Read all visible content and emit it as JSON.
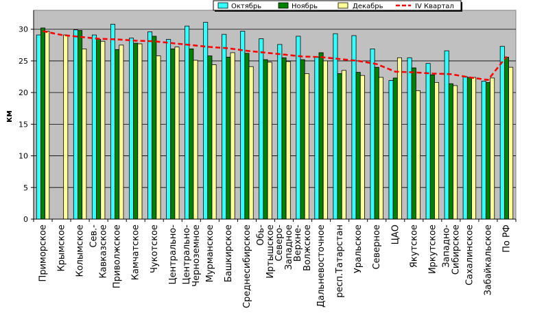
{
  "chart_data": {
    "type": "bar",
    "title": "",
    "xlabel": "",
    "ylabel": "км",
    "ylim": [
      0,
      33
    ],
    "yticks": [
      0,
      5,
      10,
      15,
      20,
      25,
      30
    ],
    "grid": true,
    "legend_position": "top-right",
    "categories": [
      "Приморское",
      "Крымское",
      "Колымское",
      "Сев.-Кавказское",
      "Приволжское",
      "Камчатское",
      "Чукотское",
      "Центрально-",
      "Центрально-Черноземное",
      "Мурманское",
      "Башкирское",
      "Среднесибирское",
      "Обь-Иртышское",
      "Северо-Западное",
      "Верхне-Волжское",
      "Дальневосточное",
      "респ.Татарстан",
      "Уральское",
      "Северное",
      "ЦАО",
      "Якутское",
      "Иркутское",
      "Западно-Сибирское",
      "Сахалинское",
      "Забайкальское",
      "По РФ"
    ],
    "label_lines": [
      [
        "Приморское"
      ],
      [
        "Крымское"
      ],
      [
        "Колымское"
      ],
      [
        "Сев.-",
        "Кавказское"
      ],
      [
        "Приволжское"
      ],
      [
        "Камчатское"
      ],
      [
        "Чукотское"
      ],
      [
        "Центрально-"
      ],
      [
        "Центрально-",
        "Черноземное"
      ],
      [
        "Мурманское"
      ],
      [
        "Башкирское"
      ],
      [
        "Среднесибирское"
      ],
      [
        "Обь-",
        "Иртышское"
      ],
      [
        "Северо-",
        "Западное"
      ],
      [
        "Верхне-",
        "Волжское"
      ],
      [
        "Дальневосточное"
      ],
      [
        "респ.Татарстан"
      ],
      [
        "Уральское"
      ],
      [
        "Северное"
      ],
      [
        "ЦАО"
      ],
      [
        "Якутское"
      ],
      [
        "Иркутское"
      ],
      [
        "Западно-",
        "Сибирское"
      ],
      [
        "Сахалинское"
      ],
      [
        "Забайкальское"
      ],
      [
        "По РФ"
      ]
    ],
    "series": [
      {
        "name": "Октябрь",
        "kind": "bar",
        "color": "#33ffff",
        "values": [
          29.1,
          null,
          29.9,
          29.1,
          30.8,
          28.6,
          29.6,
          28.4,
          30.5,
          31.1,
          29.2,
          29.7,
          28.5,
          27.6,
          28.9,
          25.6,
          29.3,
          29.0,
          26.9,
          21.9,
          25.5,
          24.6,
          26.6,
          22.5,
          21.8,
          27.3
        ]
      },
      {
        "name": "Ноябрь",
        "kind": "bar",
        "color": "#008000",
        "values": [
          30.2,
          null,
          29.8,
          28.4,
          26.8,
          27.8,
          28.9,
          26.9,
          26.9,
          25.8,
          25.6,
          26.2,
          25.2,
          25.5,
          25.2,
          26.3,
          23.0,
          23.2,
          24.0,
          22.3,
          23.9,
          22.8,
          21.4,
          22.4,
          21.6,
          25.6
        ]
      },
      {
        "name": "Декабрь",
        "kind": "bar",
        "color": "#ffff99",
        "values": [
          29.7,
          29.1,
          26.9,
          28.1,
          27.5,
          27.7,
          25.8,
          27.2,
          25.1,
          24.4,
          26.3,
          24.1,
          24.8,
          24.9,
          23.0,
          25.0,
          23.5,
          22.7,
          22.4,
          25.5,
          20.3,
          21.6,
          21.1,
          22.4,
          22.3,
          24.0
        ]
      },
      {
        "name": "IV Квартал",
        "kind": "line",
        "color": "#ff0000",
        "values": [
          29.7,
          29.1,
          28.8,
          28.5,
          28.4,
          28.2,
          28.1,
          27.8,
          27.5,
          27.2,
          27.0,
          26.6,
          26.3,
          26.0,
          25.7,
          25.6,
          25.3,
          25.0,
          24.5,
          23.3,
          23.2,
          23.0,
          22.9,
          22.4,
          22.0,
          25.7
        ]
      }
    ]
  }
}
